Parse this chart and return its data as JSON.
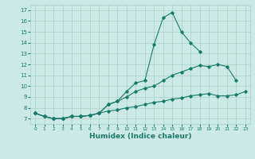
{
  "color": "#1a7a6a",
  "bg_color": "#cceae5",
  "grid_color": "#aacfc8",
  "xlabel": "Humidex (Indice chaleur)",
  "xlim": [
    -0.5,
    23.5
  ],
  "ylim": [
    6.5,
    17.5
  ],
  "yticks": [
    7,
    8,
    9,
    10,
    11,
    12,
    13,
    14,
    15,
    16,
    17
  ],
  "xticks": [
    0,
    1,
    2,
    3,
    4,
    5,
    6,
    7,
    8,
    9,
    10,
    11,
    12,
    13,
    14,
    15,
    16,
    17,
    18,
    19,
    20,
    21,
    22,
    23
  ],
  "line1_x": [
    0,
    1,
    2,
    3,
    4,
    5,
    6,
    7,
    8,
    9,
    10,
    11,
    12,
    13,
    14,
    15,
    16,
    17,
    18
  ],
  "line1_y": [
    7.5,
    7.2,
    7.0,
    7.0,
    7.2,
    7.2,
    7.3,
    7.5,
    8.3,
    8.6,
    9.5,
    10.3,
    10.5,
    13.8,
    16.3,
    16.8,
    15.0,
    14.0,
    13.2
  ],
  "line2_x": [
    0,
    1,
    2,
    3,
    4,
    5,
    6,
    7,
    8,
    9,
    10,
    11,
    12,
    13,
    14,
    15,
    16,
    17,
    18,
    19,
    20,
    21,
    22
  ],
  "line2_y": [
    7.5,
    7.2,
    7.0,
    7.0,
    7.2,
    7.2,
    7.3,
    7.5,
    8.3,
    8.6,
    9.0,
    9.5,
    9.8,
    10.0,
    10.5,
    11.0,
    11.3,
    11.6,
    11.9,
    11.8,
    12.0,
    11.8,
    10.5
  ],
  "line3_x": [
    0,
    1,
    2,
    3,
    4,
    5,
    6,
    7,
    8,
    9,
    10,
    11,
    12,
    13,
    14,
    15,
    16,
    17,
    18,
    19,
    20,
    21,
    22,
    23
  ],
  "line3_y": [
    7.5,
    7.2,
    7.0,
    7.0,
    7.2,
    7.2,
    7.3,
    7.5,
    7.7,
    7.8,
    8.0,
    8.1,
    8.3,
    8.5,
    8.6,
    8.8,
    8.9,
    9.1,
    9.2,
    9.3,
    9.1,
    9.1,
    9.2,
    9.5
  ]
}
